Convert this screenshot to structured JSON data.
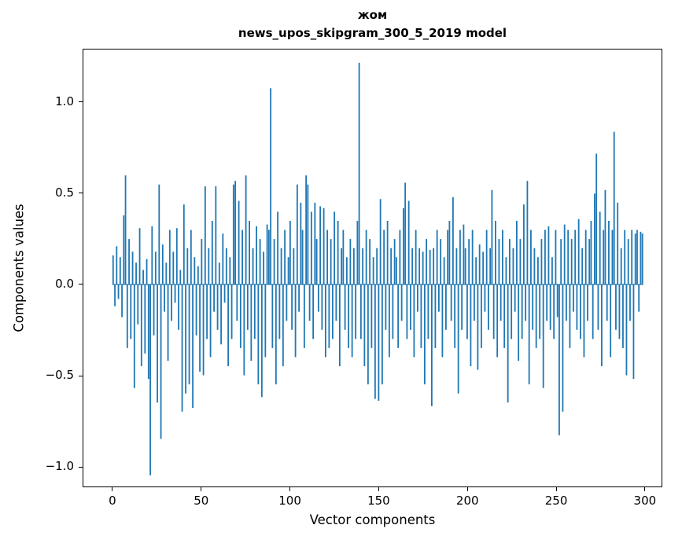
{
  "figure": {
    "title_line1": "жом",
    "title_line2": "news_upos_skipgram_300_5_2019 model",
    "xlabel": "Vector components",
    "ylabel": "Components values"
  },
  "chart_data": {
    "type": "bar",
    "title": "жом — news_upos_skipgram_300_5_2019 model",
    "xlabel": "Vector components",
    "ylabel": "Components values",
    "legend": null,
    "grid": false,
    "bar_color": "#1f77b4",
    "xlim": [
      -16.8,
      309.8
    ],
    "ylim": [
      -1.112,
      1.293
    ],
    "x_ticks": [
      0,
      50,
      100,
      150,
      200,
      250,
      300
    ],
    "y_ticks": [
      -1.0,
      -0.5,
      0.0,
      0.5,
      1.0
    ],
    "x_description": "component index 0..299",
    "values": [
      0.16,
      -0.12,
      0.21,
      -0.08,
      0.15,
      -0.18,
      0.38,
      0.6,
      -0.35,
      0.25,
      -0.3,
      0.18,
      -0.57,
      0.12,
      -0.22,
      0.31,
      -0.45,
      0.08,
      -0.38,
      0.14,
      -0.52,
      -1.05,
      0.32,
      -0.28,
      0.18,
      -0.65,
      0.55,
      -0.85,
      0.22,
      -0.15,
      0.12,
      -0.42,
      0.3,
      -0.2,
      0.18,
      -0.1,
      0.31,
      -0.25,
      0.08,
      -0.7,
      0.44,
      -0.6,
      0.2,
      -0.55,
      0.3,
      -0.68,
      0.15,
      -0.28,
      0.1,
      -0.48,
      0.25,
      -0.5,
      0.54,
      -0.3,
      0.2,
      -0.4,
      0.35,
      -0.15,
      0.54,
      -0.25,
      0.12,
      -0.33,
      0.28,
      -0.1,
      0.2,
      -0.45,
      0.15,
      -0.3,
      0.55,
      0.57,
      -0.2,
      0.46,
      -0.35,
      0.3,
      -0.5,
      0.6,
      -0.25,
      0.35,
      -0.42,
      0.2,
      -0.3,
      0.32,
      -0.55,
      0.25,
      -0.62,
      0.18,
      -0.4,
      0.33,
      0.3,
      1.08,
      -0.35,
      0.25,
      -0.55,
      0.4,
      -0.3,
      0.2,
      -0.45,
      0.3,
      -0.2,
      0.15,
      0.35,
      -0.25,
      0.2,
      -0.4,
      0.55,
      -0.15,
      0.45,
      0.3,
      -0.35,
      0.6,
      0.55,
      -0.2,
      0.4,
      -0.3,
      0.45,
      0.25,
      -0.15,
      0.43,
      -0.25,
      0.42,
      -0.4,
      0.3,
      -0.35,
      0.25,
      -0.3,
      0.4,
      -0.2,
      0.35,
      -0.45,
      0.2,
      0.3,
      -0.25,
      0.15,
      -0.35,
      0.25,
      -0.4,
      0.2,
      -0.3,
      0.35,
      1.22,
      -0.3,
      0.2,
      -0.45,
      0.3,
      -0.55,
      0.25,
      -0.35,
      0.15,
      -0.63,
      0.2,
      -0.64,
      0.47,
      -0.55,
      0.3,
      -0.25,
      0.35,
      -0.4,
      0.2,
      -0.3,
      0.25,
      0.15,
      -0.35,
      0.3,
      -0.2,
      0.42,
      0.56,
      -0.3,
      0.46,
      -0.25,
      0.2,
      -0.4,
      0.3,
      -0.15,
      0.2,
      -0.35,
      0.18,
      -0.55,
      0.25,
      -0.3,
      0.19,
      -0.67,
      0.2,
      -0.35,
      0.3,
      -0.15,
      0.25,
      -0.4,
      0.15,
      -0.25,
      0.3,
      0.35,
      -0.2,
      0.48,
      -0.35,
      0.2,
      -0.6,
      0.3,
      -0.25,
      0.33,
      0.2,
      -0.3,
      0.25,
      -0.45,
      0.3,
      -0.2,
      0.15,
      -0.47,
      0.22,
      -0.35,
      0.18,
      -0.15,
      0.3,
      -0.25,
      0.2,
      0.52,
      -0.3,
      0.35,
      -0.4,
      0.25,
      -0.2,
      0.3,
      -0.35,
      0.15,
      -0.65,
      0.25,
      -0.3,
      0.2,
      -0.15,
      0.35,
      -0.42,
      0.25,
      -0.3,
      0.44,
      -0.2,
      0.57,
      -0.55,
      0.3,
      -0.25,
      0.2,
      -0.35,
      0.15,
      -0.3,
      0.25,
      -0.57,
      0.3,
      -0.2,
      0.32,
      -0.25,
      0.15,
      -0.3,
      0.3,
      -0.18,
      -0.83,
      0.25,
      -0.7,
      0.33,
      -0.2,
      0.3,
      -0.35,
      0.25,
      -0.15,
      0.3,
      -0.25,
      0.36,
      -0.3,
      0.2,
      -0.4,
      0.3,
      -0.2,
      0.25,
      0.35,
      -0.3,
      0.5,
      0.72,
      -0.25,
      0.4,
      -0.45,
      0.3,
      0.52,
      -0.2,
      0.35,
      -0.4,
      0.3,
      0.84,
      -0.25,
      0.45,
      -0.3,
      0.2,
      -0.35,
      0.3,
      -0.5,
      0.25,
      -0.2,
      0.3,
      -0.52,
      0.28,
      0.3,
      -0.15,
      0.29,
      0.28
    ]
  }
}
